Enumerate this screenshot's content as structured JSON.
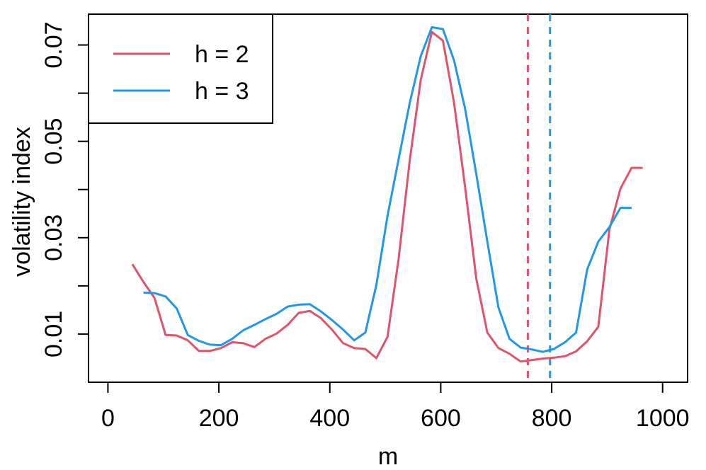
{
  "chart_data": {
    "type": "line",
    "title": "",
    "xlabel": "m",
    "ylabel": "volatility index",
    "xlim": [
      -35,
      1045
    ],
    "ylim": [
      0.0,
      0.0764
    ],
    "x_ticks": [
      "0",
      "200",
      "400",
      "600",
      "800",
      "1000"
    ],
    "x_tick_values": [
      0,
      200,
      400,
      600,
      800,
      1000
    ],
    "y_ticks": [
      "0.01",
      "0.03",
      "0.05",
      "0.07"
    ],
    "y_tick_values": [
      0.01,
      0.03,
      0.05,
      0.07
    ],
    "grid": false,
    "legend_position": "top-left",
    "series": [
      {
        "name": "h = 2",
        "color": "#DF536B",
        "x": [
          44,
          64,
          84,
          104,
          124,
          144,
          164,
          184,
          204,
          224,
          244,
          264,
          284,
          304,
          324,
          344,
          364,
          384,
          404,
          424,
          444,
          464,
          484,
          504,
          524,
          544,
          564,
          584,
          604,
          624,
          644,
          664,
          684,
          704,
          724,
          744,
          764,
          784,
          804,
          824,
          844,
          864,
          884,
          904,
          924,
          944,
          964
        ],
        "values": [
          0.0245,
          0.0208,
          0.0175,
          0.0098,
          0.0097,
          0.0087,
          0.0065,
          0.0065,
          0.0071,
          0.0083,
          0.0081,
          0.0073,
          0.009,
          0.0101,
          0.0119,
          0.0144,
          0.0148,
          0.0133,
          0.0109,
          0.0081,
          0.0071,
          0.0069,
          0.005,
          0.0094,
          0.0256,
          0.0459,
          0.0628,
          0.0727,
          0.0709,
          0.058,
          0.0404,
          0.0215,
          0.0103,
          0.0071,
          0.0059,
          0.0043,
          0.0046,
          0.0049,
          0.0051,
          0.0054,
          0.0064,
          0.0085,
          0.0115,
          0.0317,
          0.0402,
          0.0445,
          0.0445
        ]
      },
      {
        "name": "h = 3",
        "color": "#2297E6",
        "x": [
          64,
          84,
          104,
          124,
          144,
          164,
          184,
          204,
          224,
          244,
          264,
          284,
          304,
          324,
          344,
          364,
          384,
          404,
          424,
          444,
          464,
          484,
          504,
          524,
          544,
          564,
          584,
          604,
          624,
          644,
          664,
          684,
          704,
          724,
          744,
          764,
          784,
          804,
          824,
          844,
          864,
          884,
          904,
          924,
          944
        ],
        "values": [
          0.0186,
          0.0185,
          0.0178,
          0.0153,
          0.0098,
          0.0086,
          0.0078,
          0.0077,
          0.009,
          0.0108,
          0.0119,
          0.0131,
          0.0142,
          0.0157,
          0.0161,
          0.0162,
          0.0147,
          0.0129,
          0.0109,
          0.0087,
          0.0103,
          0.0202,
          0.0345,
          0.0463,
          0.0579,
          0.0677,
          0.0737,
          0.0733,
          0.0668,
          0.0567,
          0.0432,
          0.0292,
          0.0155,
          0.009,
          0.0072,
          0.0068,
          0.0063,
          0.0069,
          0.0083,
          0.0103,
          0.0234,
          0.0292,
          0.0322,
          0.0362,
          0.0362
        ]
      }
    ],
    "vlines": [
      {
        "x": 757,
        "color": "#DF536B",
        "style": "dashed"
      },
      {
        "x": 797,
        "color": "#2297E6",
        "style": "dashed"
      }
    ]
  }
}
